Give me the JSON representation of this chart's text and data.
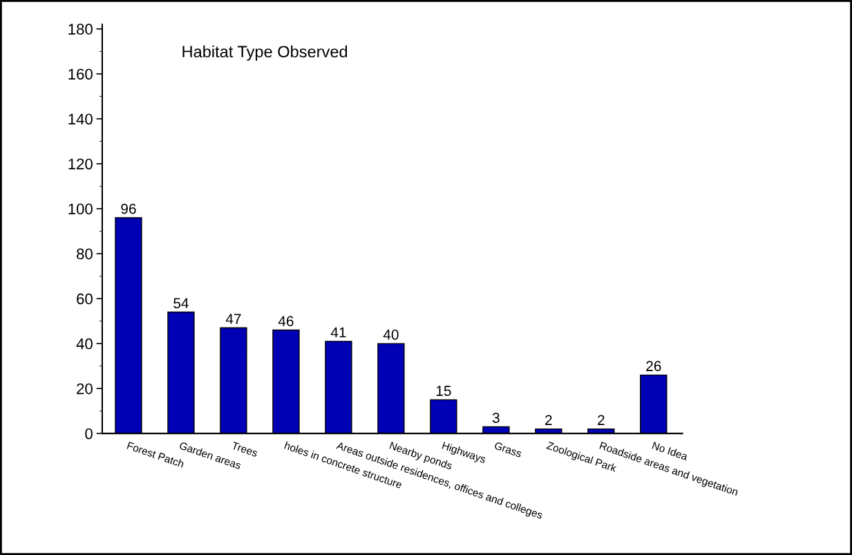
{
  "chart_data": {
    "type": "bar",
    "title": "Habitat Type Observed",
    "categories": [
      "Forest Patch",
      "Garden areas",
      "Trees",
      "holes in concrete structure",
      "Areas outside residences, offices and colleges",
      "Nearby ponds",
      "Highways",
      "Grass",
      "Zoological Park",
      "Roadside areas and vegetation",
      "No Idea"
    ],
    "values": [
      96,
      54,
      47,
      46,
      41,
      40,
      15,
      3,
      2,
      2,
      26
    ],
    "color": "#0000b4",
    "ylim": [
      0,
      182
    ],
    "yticks": [
      0,
      20,
      40,
      60,
      80,
      100,
      120,
      140,
      160,
      180
    ],
    "data_labels": true,
    "grid": false
  }
}
